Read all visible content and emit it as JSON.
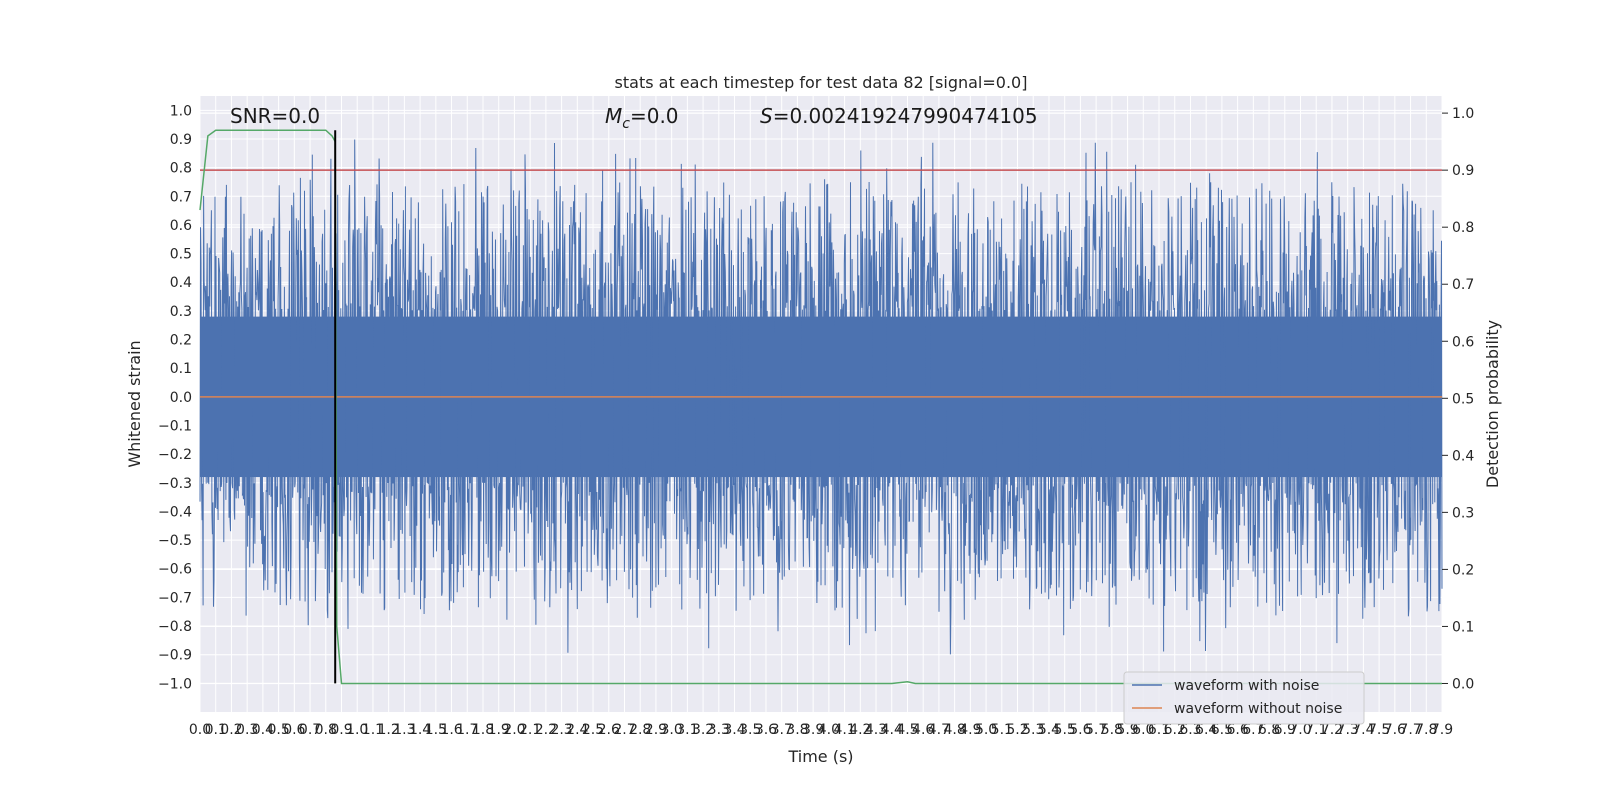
{
  "chart_data": {
    "type": "line",
    "title": "stats at each timestep for test data 82 [signal=0.0]",
    "xlabel": "Time (s)",
    "ylabel_left": "Whitened strain",
    "ylabel_right": "Detection probability",
    "xlim": [
      0.0,
      7.9
    ],
    "ylim_left": [
      -1.1,
      1.05
    ],
    "ylim_right": [
      -0.05,
      1.03
    ],
    "x_ticks": [
      0.0,
      0.1,
      0.2,
      0.3,
      0.4,
      0.5,
      0.6,
      0.7,
      0.8,
      0.9,
      1.0,
      1.1,
      1.2,
      1.3,
      1.4,
      1.5,
      1.6,
      1.7,
      1.8,
      1.9,
      2.0,
      2.1,
      2.2,
      2.3,
      2.4,
      2.5,
      2.6,
      2.7,
      2.8,
      2.9,
      3.0,
      3.1,
      3.2,
      3.3,
      3.4,
      3.5,
      3.6,
      3.7,
      3.8,
      3.9,
      4.0,
      4.1,
      4.2,
      4.3,
      4.4,
      4.5,
      4.6,
      4.7,
      4.8,
      4.9,
      5.0,
      5.1,
      5.2,
      5.3,
      5.4,
      5.5,
      5.6,
      5.7,
      5.8,
      5.9,
      6.0,
      6.1,
      6.2,
      6.3,
      6.4,
      6.5,
      6.6,
      6.7,
      6.8,
      6.9,
      7.0,
      7.1,
      7.2,
      7.3,
      7.4,
      7.5,
      7.6,
      7.7,
      7.8,
      7.9
    ],
    "y_ticks_left": [
      1.0,
      0.9,
      0.8,
      0.7,
      0.6,
      0.5,
      0.4,
      0.3,
      0.2,
      0.1,
      0.0,
      -0.1,
      -0.2,
      -0.3,
      -0.4,
      -0.5,
      -0.6,
      -0.7,
      -0.8,
      -0.9,
      -1.0
    ],
    "y_ticks_left_labels": [
      "1.0",
      "0.9",
      "0.8",
      "0.7",
      "0.6",
      "0.5",
      "0.4",
      "0.3",
      "0.2",
      "0.1",
      "0.0",
      "−0.1",
      "−0.2",
      "−0.3",
      "−0.4",
      "−0.5",
      "−0.6",
      "−0.7",
      "−0.8",
      "−0.9",
      "−1.0"
    ],
    "y_ticks_right": [
      1.0,
      0.9,
      0.8,
      0.7,
      0.6,
      0.5,
      0.4,
      0.3,
      0.2,
      0.1,
      0.0
    ],
    "grid": true,
    "legend_position": "bottom-right",
    "series": [
      {
        "name": "waveform with noise",
        "color": "#4c72b0",
        "kind": "noise",
        "axis": "left"
      },
      {
        "name": "waveform without noise",
        "color": "#dd8452",
        "axis": "left",
        "x": [
          0.0,
          7.9
        ],
        "y": [
          0.0,
          0.0
        ]
      },
      {
        "color": "#55a868",
        "axis": "right",
        "x": [
          0.0,
          0.05,
          0.1,
          0.2,
          0.4,
          0.6,
          0.8,
          0.84,
          0.86,
          0.87,
          0.9,
          4.0,
          4.3,
          4.4,
          4.45,
          4.5,
          4.55,
          7.9
        ],
        "y": [
          0.83,
          0.96,
          0.97,
          0.97,
          0.97,
          0.97,
          0.97,
          0.96,
          0.95,
          0.1,
          0.0,
          0.0,
          0.0,
          0.0,
          0.0015,
          0.003,
          0.0,
          0.0
        ]
      }
    ],
    "hline_right": {
      "y": 0.9,
      "color": "#c44e52"
    },
    "vline": {
      "x": 0.86,
      "ymin": -1.0,
      "ymax": 0.97,
      "color": "#000000"
    },
    "annotations": {
      "snr": "SNR=0.0",
      "mc_symbol": "M",
      "mc_sub": "c",
      "mc_value": "=0.0",
      "s_symbol": "S",
      "s_value": "=0.002419247990474105"
    }
  }
}
